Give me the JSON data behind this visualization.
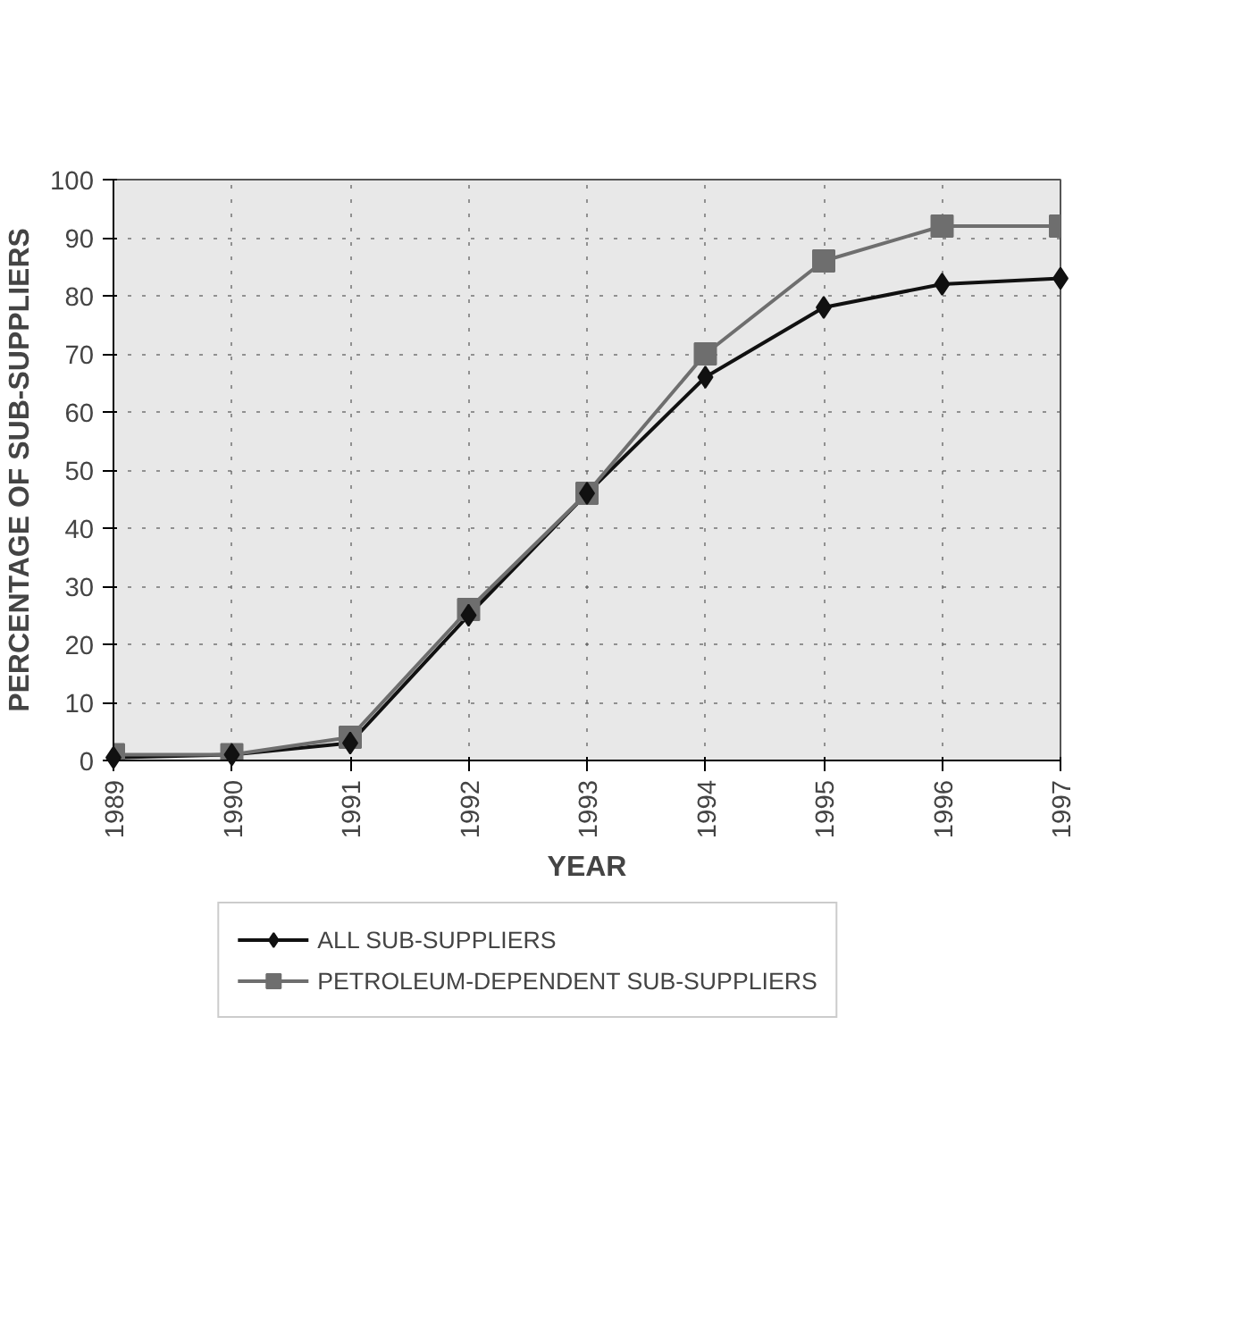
{
  "chart_data": {
    "type": "line",
    "xlabel": "YEAR",
    "ylabel": "PERCENTAGE OF SUB-SUPPLIERS",
    "x": [
      1989,
      1990,
      1991,
      1992,
      1993,
      1994,
      1995,
      1996,
      1997
    ],
    "xlim": [
      1989,
      1997
    ],
    "xticks": [
      1989,
      1990,
      1991,
      1992,
      1993,
      1994,
      1995,
      1996,
      1997
    ],
    "ylim": [
      0,
      100
    ],
    "yticks": [
      0,
      10,
      20,
      30,
      40,
      50,
      60,
      70,
      80,
      90,
      100
    ],
    "grid": true,
    "legend": "bottom",
    "series": [
      {
        "name": "ALL SUB-SUPPLIERS",
        "color": "#111111",
        "marker": "diamond",
        "line_style": "solid",
        "values": [
          0.5,
          1,
          3,
          25,
          46,
          66,
          78,
          82,
          83
        ]
      },
      {
        "name": "PETROLEUM-DEPENDENT SUB-SUPPLIERS",
        "color": "#6e6e6e",
        "marker": "square",
        "line_style": "solid",
        "values": [
          1,
          1,
          4,
          26,
          46,
          70,
          86,
          92,
          92
        ]
      }
    ]
  }
}
